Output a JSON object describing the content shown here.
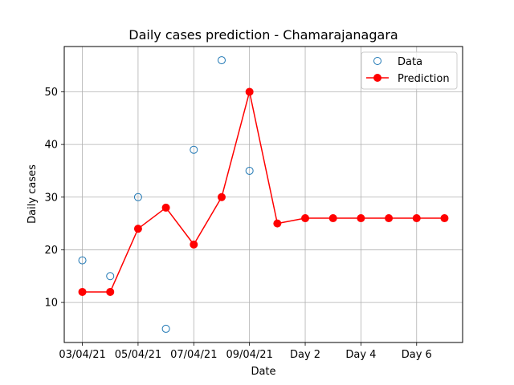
{
  "chart_data": {
    "type": "line",
    "title": "Daily cases prediction - Chamarajanagara",
    "xlabel": "Date",
    "ylabel": "Daily cases",
    "x_positions": [
      0,
      1,
      2,
      3,
      4,
      5,
      6,
      7,
      8,
      9,
      10,
      11,
      12,
      13
    ],
    "x_ticks": [
      {
        "pos": 0,
        "label": "03/04/21"
      },
      {
        "pos": 2,
        "label": "05/04/21"
      },
      {
        "pos": 4,
        "label": "07/04/21"
      },
      {
        "pos": 6,
        "label": "09/04/21"
      },
      {
        "pos": 8,
        "label": "Day 2"
      },
      {
        "pos": 10,
        "label": "Day 4"
      },
      {
        "pos": 12,
        "label": "Day 6"
      }
    ],
    "xlim": [
      -0.65,
      13.65
    ],
    "ylim": [
      2.4,
      58.6
    ],
    "y_ticks": [
      10,
      20,
      30,
      40,
      50
    ],
    "grid": true,
    "legend_position": "top-right",
    "series": [
      {
        "name": "Data",
        "style": "markers-hollow",
        "color": "#1f77b4",
        "x": [
          0,
          1,
          2,
          3,
          4,
          5,
          6
        ],
        "y": [
          18,
          15,
          30,
          5,
          39,
          56,
          35
        ]
      },
      {
        "name": "Prediction",
        "style": "line-markers",
        "color": "#ff0000",
        "x": [
          0,
          1,
          2,
          3,
          4,
          5,
          6,
          7,
          8,
          9,
          10,
          11,
          12,
          13
        ],
        "y": [
          12,
          12,
          24,
          28,
          21,
          30,
          50,
          25,
          26,
          26,
          26,
          26,
          26,
          26
        ]
      }
    ]
  }
}
